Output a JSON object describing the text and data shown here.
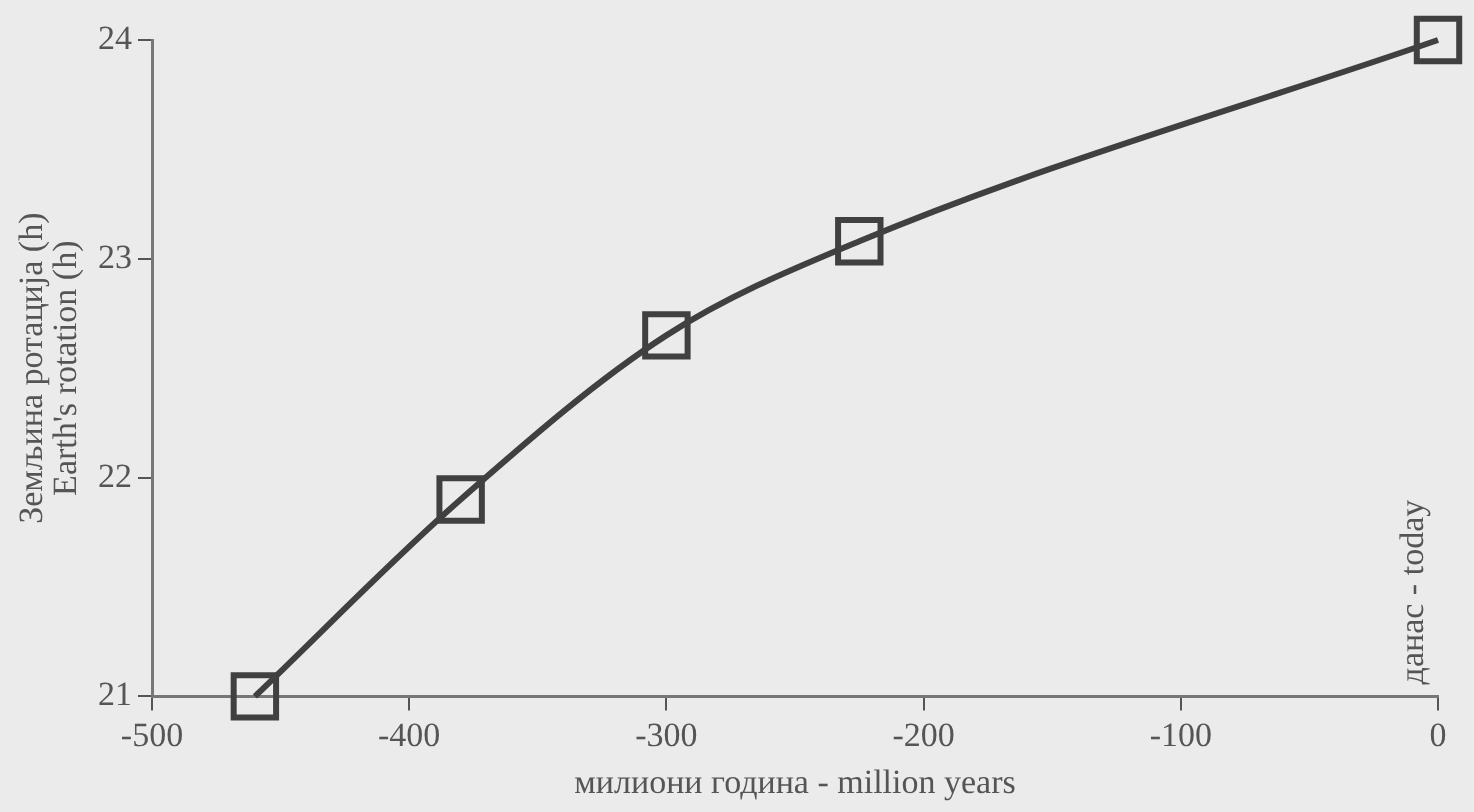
{
  "chart_data": {
    "type": "line",
    "xlabel": "милиони година - million years",
    "ylabel": "Земљина ротација (h)\nEarth's rotation (h)",
    "x": [
      -460,
      -380,
      -300,
      -225,
      0
    ],
    "series": [
      {
        "color": "#404040",
        "values": [
          21.0,
          21.9,
          22.65,
          23.08,
          24.0
        ]
      }
    ],
    "xlim": [
      -500,
      0
    ],
    "xticks": [
      -500,
      -400,
      -300,
      -200,
      -100,
      0
    ],
    "ylim": [
      21,
      24
    ],
    "yticks": [
      21,
      22,
      23,
      24
    ],
    "marker": "square",
    "line_style": "solid",
    "grid": false,
    "legend": false,
    "annotations": [
      "данас - today"
    ]
  }
}
